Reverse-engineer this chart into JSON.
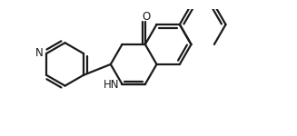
{
  "bg_color": "#ffffff",
  "bond_color": "#1a1a1a",
  "line_width": 1.6,
  "N_label": "N",
  "NH_label": "HN",
  "O_label": "O",
  "xlim": [
    -3.8,
    4.2
  ],
  "ylim": [
    -1.6,
    1.6
  ]
}
